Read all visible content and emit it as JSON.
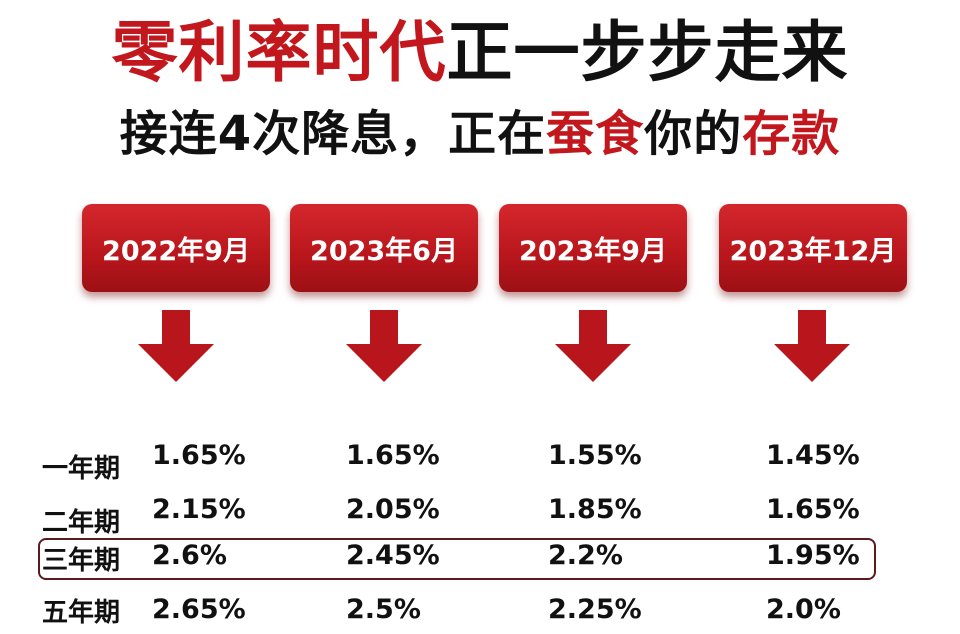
{
  "title": {
    "line1_red": "零利率时代",
    "line1_black": "正一步步走来",
    "line2_part1": "接连4次降息，正在",
    "line2_red1": "蚕食",
    "line2_part2": "你的",
    "line2_red2": "存款"
  },
  "dates": [
    "2022年9月",
    "2023年6月",
    "2023年9月",
    "2023年12月"
  ],
  "rows": [
    {
      "term": "一年期",
      "rates": [
        "1.65%",
        "1.65%",
        "1.55%",
        "1.45%"
      ]
    },
    {
      "term": "二年期",
      "rates": [
        "2.15%",
        "2.05%",
        "1.85%",
        "1.65%"
      ]
    },
    {
      "term": "三年期",
      "rates": [
        "2.6%",
        "2.45%",
        "2.2%",
        "1.95%"
      ]
    },
    {
      "term": "五年期",
      "rates": [
        "2.65%",
        "2.5%",
        "2.25%",
        "2.0%"
      ]
    }
  ],
  "highlighted_row": "三年期",
  "colors": {
    "accent_red": "#c3171e",
    "box_red": "#b8161c",
    "arrow_red": "#b8161c",
    "text": "#111111"
  },
  "icons": {
    "arrow": "arrow-down-icon"
  }
}
